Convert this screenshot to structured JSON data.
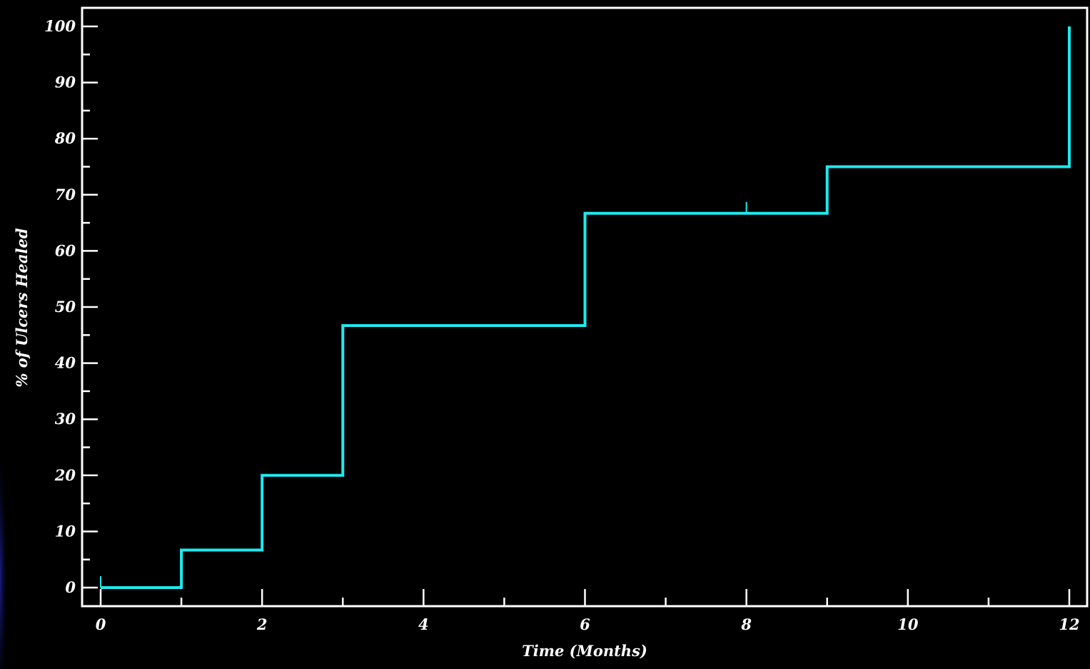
{
  "chart_data": {
    "type": "line",
    "step": true,
    "title": "",
    "xlabel": "Time (Months)",
    "ylabel": "% of Ulcers Healed",
    "xlim": [
      0,
      12
    ],
    "ylim": [
      0,
      100
    ],
    "x_ticks": [
      0,
      2,
      4,
      6,
      8,
      10,
      12
    ],
    "x_tick_labels": [
      "0",
      "2",
      "4",
      "6",
      "8",
      "10",
      "12"
    ],
    "y_ticks": [
      0,
      10,
      20,
      30,
      40,
      50,
      60,
      70,
      80,
      90,
      100
    ],
    "y_tick_labels": [
      "0",
      "10",
      "20",
      "30",
      "40",
      "50",
      "60",
      "70",
      "80",
      "90",
      "100"
    ],
    "grid": false,
    "legend": "none",
    "series": [
      {
        "x": [
          0,
          1,
          2,
          3,
          6,
          9,
          12
        ],
        "y": [
          0,
          6.7,
          20,
          46.7,
          66.7,
          75,
          100
        ]
      }
    ],
    "censor_marks": [
      {
        "x": 0,
        "y": 0
      },
      {
        "x": 8,
        "y": 66.7
      }
    ],
    "colors": {
      "background": "#000000",
      "axes": "#ffffff",
      "line": "#1de9ee"
    }
  }
}
